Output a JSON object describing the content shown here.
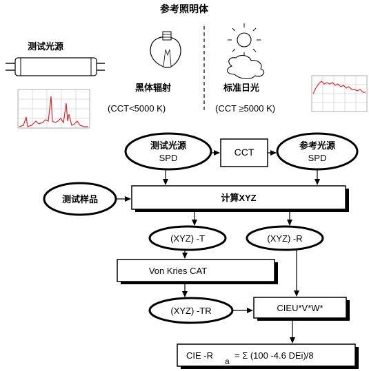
{
  "header": {
    "title": "参考照明体"
  },
  "top": {
    "test_source_label": "测试光源",
    "blackbody_label": "黑体辐射",
    "blackbody_condition": "(CCT<5000 K)",
    "daylight_label": "标准日光",
    "daylight_condition": "(CCT  ≥5000 K)"
  },
  "flow": {
    "test_spd_line1": "测试光源",
    "test_spd_line2": "SPD",
    "cct": "CCT",
    "ref_spd_line1": "参考光源",
    "ref_spd_line2": "SPD",
    "test_sample": "测试样品",
    "calc": "计算XYZ",
    "xyz_t": "(XYZ) -T",
    "xyz_r": "(XYZ) -R",
    "von_kries": "Von Kries CAT",
    "xyz_tr": "(XYZ) -TR",
    "cieuvw": "CIEU*V*W*",
    "formula_left": "CIE -R",
    "formula_sub": "a",
    "formula_right": "= Σ (100  -4.6 DEi)/8"
  },
  "colors": {
    "spectrum_red": "#e0242a",
    "grid_gray": "#bdbdbd",
    "box_shadow": "#000000"
  }
}
